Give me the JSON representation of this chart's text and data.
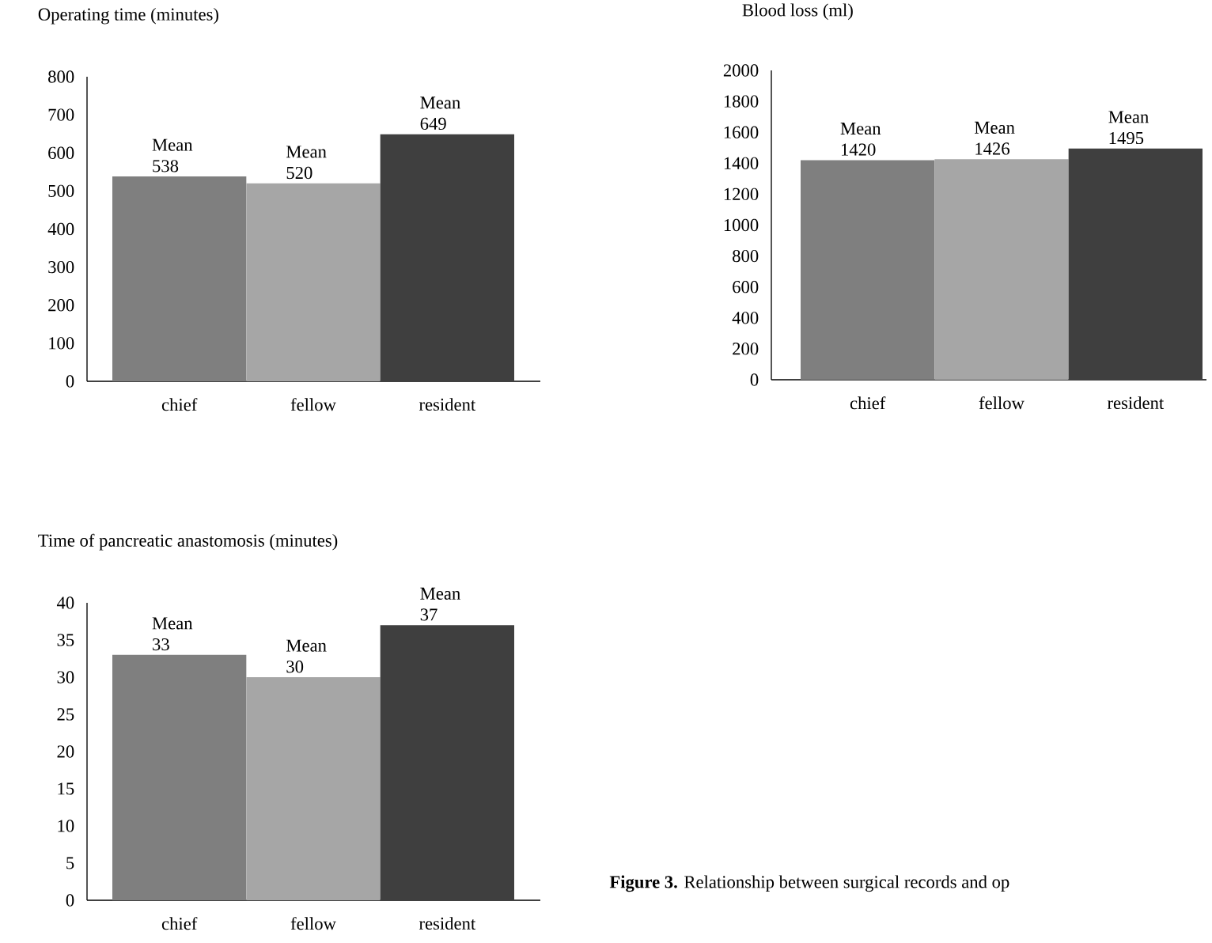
{
  "chart_data": [
    {
      "type": "bar",
      "title": "Operating time (minutes)",
      "categories": [
        "chief",
        "fellow",
        "resident"
      ],
      "values": [
        538,
        520,
        649
      ],
      "colors": [
        "#7f7f7f",
        "#a6a6a6",
        "#3f3f3f"
      ],
      "value_labels": [
        "Mean 538",
        "Mean 520",
        "Mean 649"
      ],
      "ylim": [
        0,
        800
      ],
      "yticks": [
        0,
        100,
        200,
        300,
        400,
        500,
        600,
        700,
        800
      ]
    },
    {
      "type": "bar",
      "title": "Blood loss (ml)",
      "categories": [
        "chief",
        "fellow",
        "resident"
      ],
      "values": [
        1420,
        1426,
        1495
      ],
      "colors": [
        "#7f7f7f",
        "#a6a6a6",
        "#3f3f3f"
      ],
      "value_labels": [
        "Mean 1420",
        "Mean 1426",
        "Mean 1495"
      ],
      "ylim": [
        0,
        2000
      ],
      "yticks": [
        0,
        200,
        400,
        600,
        800,
        1000,
        1200,
        1400,
        1600,
        1800,
        2000
      ]
    },
    {
      "type": "bar",
      "title": "Time of pancreatic anastomosis (minutes)",
      "categories": [
        "chief",
        "fellow",
        "resident"
      ],
      "values": [
        33,
        30,
        37
      ],
      "colors": [
        "#7f7f7f",
        "#a6a6a6",
        "#3f3f3f"
      ],
      "value_labels": [
        "Mean 33",
        "Mean 30",
        "Mean 37"
      ],
      "ylim": [
        0,
        40
      ],
      "yticks": [
        0,
        5,
        10,
        15,
        20,
        25,
        30,
        35,
        40
      ],
      "annotations": [
        "**Figure 3.** Relationship between surgical records and op"
      ]
    }
  ]
}
